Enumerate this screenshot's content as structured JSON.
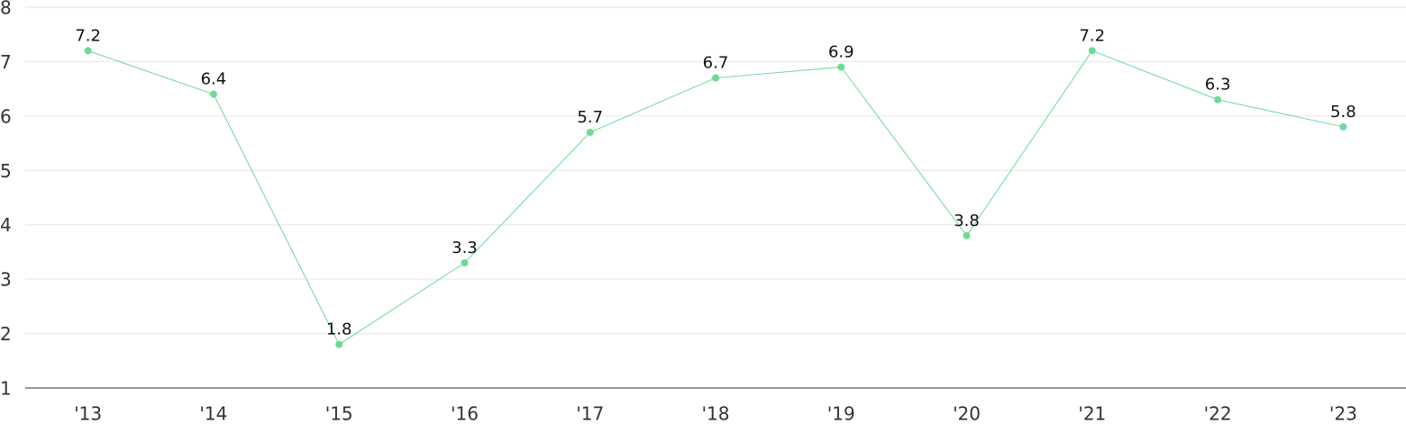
{
  "chart_data": {
    "type": "line",
    "categories": [
      "'13",
      "'14",
      "'15",
      "'16",
      "'17",
      "'18",
      "'19",
      "'20",
      "'21",
      "'22",
      "'23"
    ],
    "series": [
      {
        "color": "#6fd996",
        "values": [
          7.2,
          6.4,
          1.8,
          3.3,
          5.7,
          6.7,
          6.9,
          3.8,
          7.2,
          6.3,
          5.8
        ]
      }
    ],
    "ylim": [
      1,
      8
    ],
    "yticks": [
      1,
      2,
      3,
      4,
      5,
      6,
      7,
      8
    ],
    "grid": true
  }
}
